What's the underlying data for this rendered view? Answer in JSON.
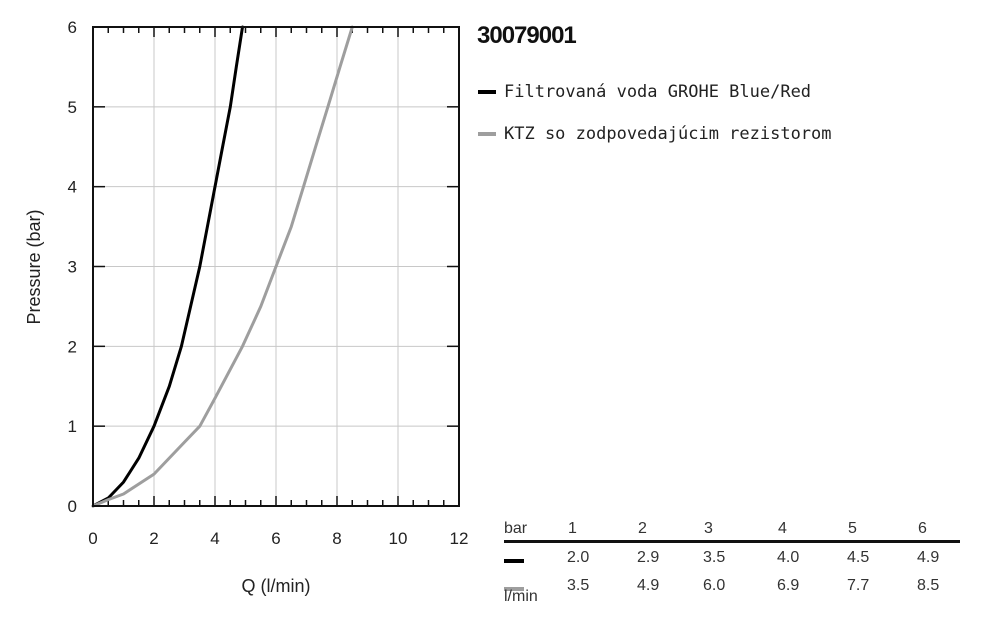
{
  "product_code": "30079001",
  "chart_data": {
    "type": "line",
    "xlabel": "Q (l/min)",
    "ylabel": "Pressure (bar)",
    "xlim": [
      0,
      12
    ],
    "ylim": [
      0,
      6
    ],
    "xticks": [
      0,
      2,
      4,
      6,
      8,
      10,
      12
    ],
    "yticks": [
      0,
      1,
      2,
      3,
      4,
      5,
      6
    ],
    "grid": true,
    "legend_position": "right",
    "series": [
      {
        "name": "Filtrovaná voda GROHE Blue/Red",
        "color": "#000000",
        "points": [
          [
            0,
            0
          ],
          [
            0.5,
            0.1
          ],
          [
            1,
            0.3
          ],
          [
            1.5,
            0.6
          ],
          [
            2,
            1
          ],
          [
            2.5,
            1.5
          ],
          [
            2.9,
            2
          ],
          [
            3.2,
            2.5
          ],
          [
            3.5,
            3
          ],
          [
            3.75,
            3.5
          ],
          [
            4,
            4
          ],
          [
            4.25,
            4.5
          ],
          [
            4.5,
            5
          ],
          [
            4.7,
            5.5
          ],
          [
            4.9,
            6
          ]
        ]
      },
      {
        "name": "KTZ so zodpovedajúcim rezistorom",
        "color": "#9e9e9e",
        "points": [
          [
            0,
            0
          ],
          [
            0.5,
            0.08
          ],
          [
            1,
            0.15
          ],
          [
            2,
            0.4
          ],
          [
            3,
            0.8
          ],
          [
            3.5,
            1
          ],
          [
            4,
            1.35
          ],
          [
            4.9,
            2
          ],
          [
            5.5,
            2.5
          ],
          [
            6,
            3
          ],
          [
            6.5,
            3.5
          ],
          [
            6.9,
            4
          ],
          [
            7.3,
            4.5
          ],
          [
            7.7,
            5
          ],
          [
            8.1,
            5.5
          ],
          [
            8.5,
            6
          ]
        ]
      }
    ]
  },
  "flow_table": {
    "header_label": "bar",
    "unit_label": "l/min",
    "pressures": [
      "1",
      "2",
      "3",
      "4",
      "5",
      "6"
    ],
    "rows": [
      {
        "color": "#000000",
        "values": [
          "2.0",
          "2.9",
          "3.5",
          "4.0",
          "4.5",
          "4.9"
        ]
      },
      {
        "color": "#9e9e9e",
        "values": [
          "3.5",
          "4.9",
          "6.0",
          "6.9",
          "7.7",
          "8.5"
        ]
      }
    ]
  }
}
